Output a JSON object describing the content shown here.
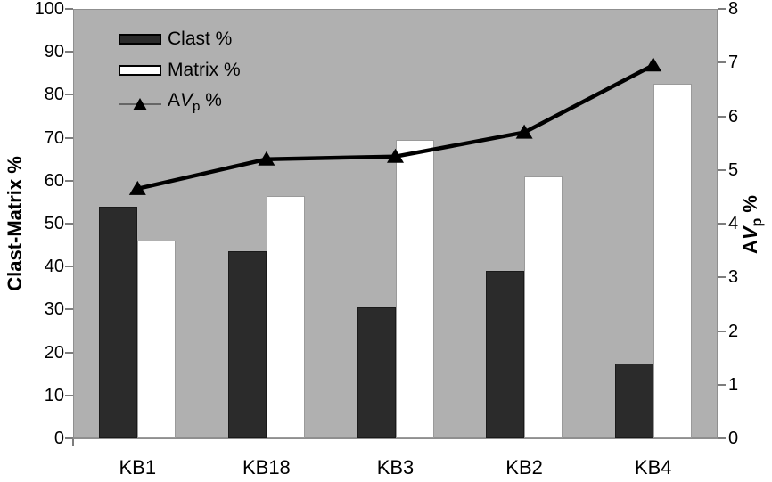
{
  "chart_data": {
    "type": "combo_bar_line",
    "categories": [
      "KB1",
      "KB18",
      "KB3",
      "KB2",
      "KB4"
    ],
    "series": [
      {
        "name": "Clast %",
        "type": "bar",
        "axis": "left",
        "color": "#2b2b2b",
        "values": [
          54,
          43.5,
          30.5,
          39,
          17.5
        ]
      },
      {
        "name": "Matrix %",
        "type": "bar",
        "axis": "left",
        "color": "#ffffff",
        "values": [
          46,
          56.5,
          69.5,
          61,
          82.5
        ]
      },
      {
        "name": "AVp %",
        "type": "line",
        "axis": "right",
        "color": "#000000",
        "marker": "triangle-up",
        "values": [
          4.65,
          5.2,
          5.25,
          5.7,
          6.95
        ]
      }
    ],
    "left_axis": {
      "label": "Clast-Matrix %",
      "min": 0,
      "max": 100,
      "step": 10,
      "tick_labels": [
        "0",
        "10",
        "20",
        "30",
        "40",
        "50",
        "60",
        "70",
        "80",
        "90",
        "100"
      ]
    },
    "right_axis": {
      "title_parts": {
        "a": "A",
        "v": "V",
        "p": "p",
        "pct": " %"
      },
      "min": 0,
      "max": 8,
      "step": 1,
      "tick_labels": [
        "0",
        "1",
        "2",
        "3",
        "4",
        "5",
        "6",
        "7",
        "8"
      ]
    },
    "plot_background": "#b0b0b0",
    "grid": "off",
    "legend_position": "top-left-inside"
  },
  "legend": {
    "clast": "Clast %",
    "matrix": "Matrix %",
    "avp": {
      "a": "A",
      "v": "V",
      "p": "p",
      "pct": " %"
    }
  }
}
